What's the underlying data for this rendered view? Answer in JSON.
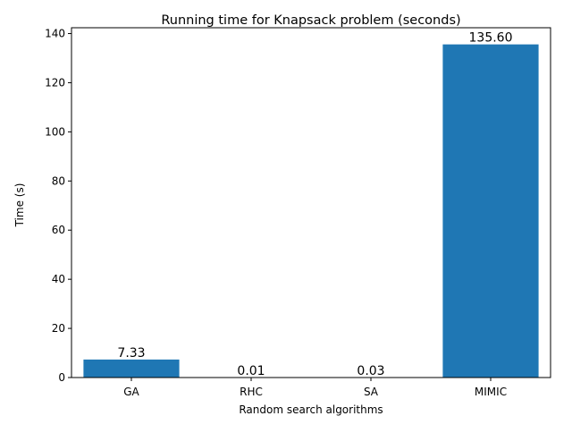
{
  "chart_data": {
    "type": "bar",
    "title": "Running time for Knapsack problem (seconds)",
    "xlabel": "Random search algorithms",
    "ylabel": "Time (s)",
    "categories": [
      "GA",
      "RHC",
      "SA",
      "MIMIC"
    ],
    "values": [
      7.33,
      0.01,
      0.03,
      135.6
    ],
    "value_labels": [
      "7.33",
      "0.01",
      "0.03",
      "135.60"
    ],
    "ylim": [
      0,
      142.38
    ],
    "yticks": [
      0,
      20,
      40,
      60,
      80,
      100,
      120,
      140
    ],
    "grid": false,
    "bar_color": "#1f77b4"
  }
}
